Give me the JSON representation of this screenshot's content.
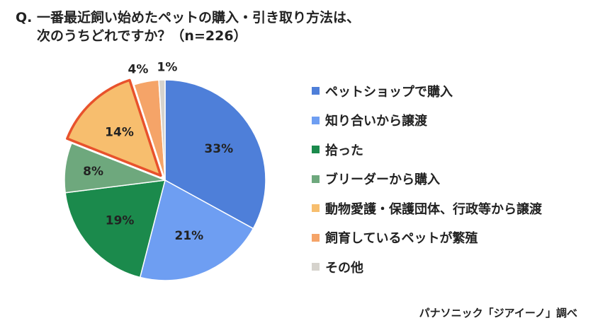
{
  "title": {
    "line1": "Q. 一番最近飼い始めたペットの購入・引き取り方法は、",
    "line2": "次のうちどれですか？（n=226）"
  },
  "source": "パナソニック「ジアイーノ」調べ",
  "chart_data": {
    "type": "pie",
    "start_angle_deg": 0,
    "direction": "clockwise",
    "legend_position": "right",
    "slices": [
      {
        "label": "ペットショップで購入",
        "value": 33,
        "display": "33%",
        "color": "#4e7fd9",
        "highlight": false
      },
      {
        "label": "知り合いから譲渡",
        "value": 21,
        "display": "21%",
        "color": "#6e9ef2",
        "highlight": false
      },
      {
        "label": "拾った",
        "value": 19,
        "display": "19%",
        "color": "#1b8a4c",
        "highlight": false
      },
      {
        "label": "ブリーダーから購入",
        "value": 8,
        "display": "8%",
        "color": "#6ea87d",
        "highlight": false
      },
      {
        "label": "動物愛護・保護団体、行政等から譲渡",
        "value": 14,
        "display": "14%",
        "color": "#f7be6e",
        "highlight": true
      },
      {
        "label": "飼育しているペットが繁殖",
        "value": 4,
        "display": "4%",
        "color": "#f5a468",
        "highlight": false
      },
      {
        "label": "その他",
        "value": 1,
        "display": "1%",
        "color": "#d6d3cd",
        "highlight": false
      }
    ],
    "highlight_border_color": "#e8522c"
  }
}
